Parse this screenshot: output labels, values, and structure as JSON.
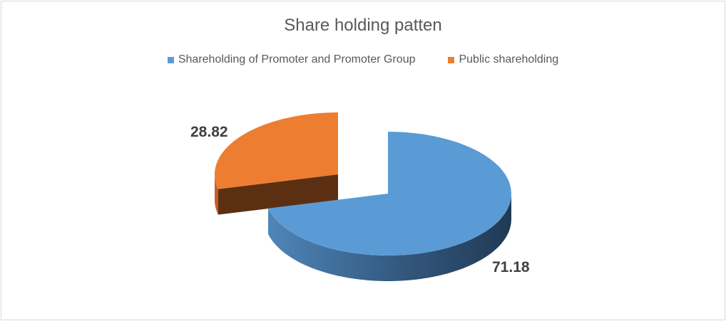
{
  "chart_data": {
    "type": "pie",
    "title": "Share holding patten",
    "legend_position": "top",
    "three_d": true,
    "exploded": "Public shareholding",
    "slices": [
      {
        "name": "Shareholding of Promoter and Promoter Group",
        "value": 71.18,
        "label": "71.18",
        "color": "#5b9bd5"
      },
      {
        "name": "Public shareholding",
        "value": 28.82,
        "label": "28.82",
        "color": "#ed7d31"
      }
    ]
  }
}
